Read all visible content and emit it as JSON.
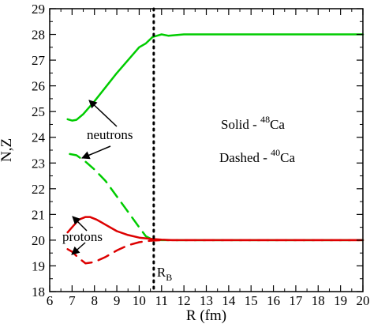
{
  "chart_data": {
    "type": "line",
    "xlabel": "R (fm)",
    "ylabel": "N,Z",
    "xlim": [
      6,
      20
    ],
    "ylim": [
      18,
      29
    ],
    "xticks": [
      6,
      7,
      8,
      9,
      10,
      11,
      12,
      13,
      14,
      15,
      16,
      17,
      18,
      19,
      20
    ],
    "yticks": [
      18,
      19,
      20,
      21,
      22,
      23,
      24,
      25,
      26,
      27,
      28,
      29
    ],
    "grid": false,
    "series": [
      {
        "color": "#00cc00",
        "dash": "solid",
        "nucleus": "48Ca",
        "particle": "neutrons",
        "x": [
          6.8,
          7.0,
          7.2,
          7.5,
          8.0,
          8.5,
          9.0,
          9.5,
          10.0,
          10.3,
          10.6,
          10.8,
          11.0,
          11.3,
          12.0,
          13.0,
          15.0,
          17.0,
          20.0
        ],
        "y": [
          24.7,
          24.65,
          24.68,
          24.9,
          25.4,
          25.95,
          26.5,
          27.0,
          27.5,
          27.65,
          27.9,
          27.95,
          28.0,
          27.95,
          28.0,
          28.0,
          28.0,
          28.0,
          28.0
        ]
      },
      {
        "color": "#00cc00",
        "dash": "dashed",
        "nucleus": "40Ca",
        "particle": "neutrons",
        "x": [
          6.9,
          7.2,
          7.6,
          8.0,
          8.5,
          9.0,
          9.5,
          10.0,
          10.3,
          10.6,
          11.0,
          12.0,
          20.0
        ],
        "y": [
          23.35,
          23.3,
          23.05,
          22.75,
          22.3,
          21.7,
          21.1,
          20.5,
          20.15,
          20.02,
          20.0,
          20.0,
          20.0
        ]
      },
      {
        "color": "#dd0000",
        "dash": "solid",
        "nucleus": "48Ca",
        "particle": "protons",
        "x": [
          6.8,
          7.0,
          7.3,
          7.6,
          7.8,
          8.1,
          8.5,
          9.0,
          9.5,
          10.0,
          10.5,
          11.0,
          11.5,
          12.0,
          20.0
        ],
        "y": [
          20.3,
          20.5,
          20.8,
          20.9,
          20.9,
          20.8,
          20.6,
          20.35,
          20.2,
          20.1,
          20.05,
          20.02,
          20.0,
          20.0,
          20.0
        ]
      },
      {
        "color": "#dd0000",
        "dash": "dashed",
        "nucleus": "40Ca",
        "particle": "protons",
        "x": [
          6.8,
          7.0,
          7.3,
          7.6,
          8.0,
          8.5,
          9.0,
          9.5,
          10.0,
          10.5,
          11.0,
          11.5,
          12.0,
          20.0
        ],
        "y": [
          19.65,
          19.55,
          19.3,
          19.1,
          19.15,
          19.35,
          19.6,
          19.8,
          19.92,
          19.98,
          20.0,
          20.0,
          20.0,
          20.0
        ]
      }
    ],
    "vline": {
      "x": 10.65,
      "style": "dotted",
      "color": "#000000",
      "label": "R",
      "label_sub": "B"
    },
    "annotations": [
      {
        "text": "neutrons"
      },
      {
        "text": "protons"
      }
    ],
    "legend_text": {
      "solid_prefix": "Solid - ",
      "solid_mass": "48",
      "solid_element": "Ca",
      "dashed_prefix": "Dashed - ",
      "dashed_mass": "40",
      "dashed_element": "Ca"
    }
  }
}
